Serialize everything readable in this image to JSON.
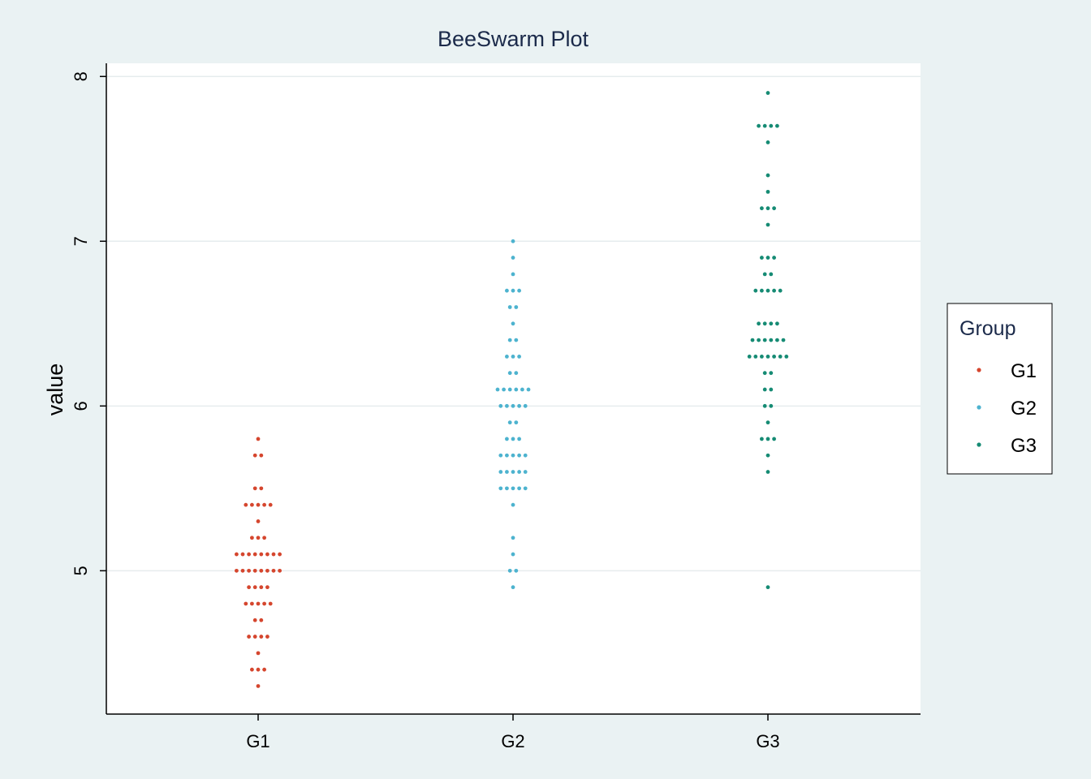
{
  "chart_data": {
    "type": "scatter",
    "subtype": "beeswarm",
    "title": "BeeSwarm Plot",
    "xlabel": "",
    "ylabel": "value",
    "categories": [
      "G1",
      "G2",
      "G3"
    ],
    "ylim": [
      4.13,
      8.08
    ],
    "yticks": [
      5,
      6,
      7,
      8
    ],
    "grid": "horizontal",
    "legend": {
      "title": "Group",
      "placement": "right",
      "entries": [
        "G1",
        "G2",
        "G3"
      ]
    },
    "colors": {
      "G1": "#D5462E",
      "G2": "#4DB3CF",
      "G3": "#168B74",
      "background": "#EAF2F3",
      "panel": "#FFFFFF",
      "grid": "#E6ECEE",
      "axis": "#000000",
      "title": "#1B2A4A"
    },
    "series": [
      {
        "name": "G1",
        "values": [
          4.3,
          4.4,
          4.4,
          4.4,
          4.5,
          4.6,
          4.6,
          4.6,
          4.6,
          4.7,
          4.7,
          4.8,
          4.8,
          4.8,
          4.8,
          4.8,
          4.9,
          4.9,
          4.9,
          4.9,
          5.0,
          5.0,
          5.0,
          5.0,
          5.0,
          5.0,
          5.0,
          5.0,
          5.1,
          5.1,
          5.1,
          5.1,
          5.1,
          5.1,
          5.1,
          5.1,
          5.2,
          5.2,
          5.2,
          5.3,
          5.4,
          5.4,
          5.4,
          5.4,
          5.4,
          5.5,
          5.5,
          5.7,
          5.7,
          5.8
        ]
      },
      {
        "name": "G2",
        "values": [
          4.9,
          5.0,
          5.0,
          5.1,
          5.2,
          5.4,
          5.5,
          5.5,
          5.5,
          5.5,
          5.5,
          5.6,
          5.6,
          5.6,
          5.6,
          5.6,
          5.7,
          5.7,
          5.7,
          5.7,
          5.7,
          5.8,
          5.8,
          5.8,
          5.9,
          5.9,
          6.0,
          6.0,
          6.0,
          6.0,
          6.0,
          6.1,
          6.1,
          6.1,
          6.1,
          6.1,
          6.1,
          6.2,
          6.2,
          6.3,
          6.3,
          6.3,
          6.4,
          6.4,
          6.5,
          6.6,
          6.6,
          6.7,
          6.7,
          6.7,
          6.8,
          6.9,
          7.0
        ]
      },
      {
        "name": "G3",
        "values": [
          4.9,
          5.6,
          5.7,
          5.8,
          5.8,
          5.8,
          5.9,
          6.0,
          6.0,
          6.1,
          6.1,
          6.2,
          6.2,
          6.3,
          6.3,
          6.3,
          6.3,
          6.3,
          6.3,
          6.3,
          6.4,
          6.4,
          6.4,
          6.4,
          6.4,
          6.4,
          6.5,
          6.5,
          6.5,
          6.5,
          6.7,
          6.7,
          6.7,
          6.7,
          6.7,
          6.8,
          6.8,
          6.9,
          6.9,
          6.9,
          7.1,
          7.2,
          7.2,
          7.2,
          7.3,
          7.4,
          7.6,
          7.7,
          7.7,
          7.7,
          7.7,
          7.9
        ]
      }
    ]
  }
}
